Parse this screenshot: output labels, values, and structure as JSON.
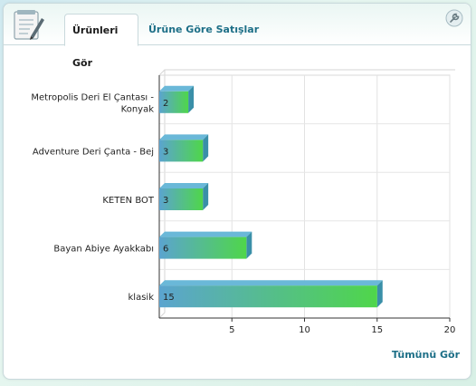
{
  "tabs": [
    {
      "label": "Ürünleri Gör"
    },
    {
      "label": "Ürüne Göre Satışlar"
    }
  ],
  "footer_link": "Tümünü Gör",
  "icons": {
    "widget": "notepad-pen-icon",
    "settings": "wrench-icon"
  },
  "colors": {
    "bar_start": "#5ba4cf",
    "bar_end": "#4fd64a",
    "bar_top": "#6ab8d8",
    "bar_side": "#3a8fa8",
    "link": "#1d6f87"
  },
  "chart_data": {
    "type": "bar",
    "orientation": "horizontal",
    "categories": [
      [
        "Metropolis Deri El Çantası -",
        "Konyak"
      ],
      [
        "Adventure Deri Çanta - Bej"
      ],
      [
        "KETEN BOT"
      ],
      [
        "Bayan Abiye Ayakkabı"
      ],
      [
        "klasik"
      ]
    ],
    "values": [
      2,
      3,
      3,
      6,
      15
    ],
    "xlim": [
      0,
      20
    ],
    "xticks": [
      5,
      10,
      15,
      20
    ],
    "title": "",
    "xlabel": "",
    "ylabel": "",
    "grid": true
  }
}
